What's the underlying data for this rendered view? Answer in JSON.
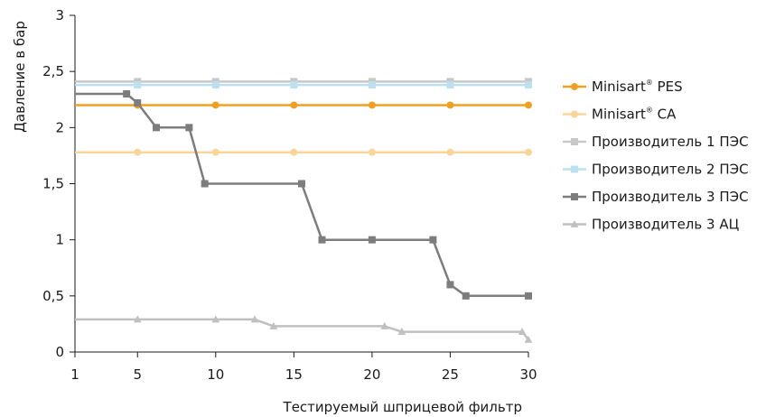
{
  "chart_data": {
    "type": "line",
    "xlabel": "Тестируемый шприцевой фильтр",
    "ylabel": "Давление в бар",
    "xlim": [
      1,
      30
    ],
    "ylim": [
      0,
      3
    ],
    "x_ticks": [
      1,
      5,
      10,
      15,
      20,
      25,
      30
    ],
    "x_tick_labels": [
      "1",
      "5",
      "10",
      "15",
      "20",
      "25",
      "30"
    ],
    "y_ticks": [
      0,
      0.5,
      1,
      1.5,
      2,
      2.5,
      3
    ],
    "y_tick_labels": [
      "0",
      "0,5",
      "1",
      "1,5",
      "2",
      "2,5",
      "3"
    ],
    "grid": false,
    "legend_position": "right",
    "series": [
      {
        "name": "Minisart",
        "name_sup": "®",
        "name_suffix": " PES",
        "label": "Minisart® PES",
        "color": "#f0a020",
        "marker": "circle",
        "x": [
          1,
          5,
          10,
          15,
          20,
          25,
          30
        ],
        "y": [
          2.2,
          2.2,
          2.2,
          2.2,
          2.2,
          2.2,
          2.2
        ],
        "marker_x": [
          5,
          10,
          15,
          20,
          25,
          30
        ]
      },
      {
        "name": "Minisart",
        "name_sup": "®",
        "name_suffix": " CA",
        "label": "Minisart® CA",
        "color": "#fad59a",
        "marker": "circle",
        "x": [
          1,
          5,
          10,
          15,
          20,
          25,
          30
        ],
        "y": [
          1.78,
          1.78,
          1.78,
          1.78,
          1.78,
          1.78,
          1.78
        ],
        "marker_x": [
          5,
          10,
          15,
          20,
          25,
          30
        ]
      },
      {
        "name": "Производитель 1 ПЭС",
        "name_sup": "",
        "name_suffix": "",
        "label": "Производитель 1 ПЭС",
        "color": "#c8c8c8",
        "marker": "square",
        "x": [
          1,
          5,
          10,
          15,
          20,
          25,
          30
        ],
        "y": [
          2.41,
          2.41,
          2.41,
          2.41,
          2.41,
          2.41,
          2.41
        ],
        "marker_x": [
          5,
          10,
          15,
          20,
          25,
          30
        ]
      },
      {
        "name": "Производитель 2 ПЭС",
        "name_sup": "",
        "name_suffix": "",
        "label": "Производитель 2 ПЭС",
        "color": "#bde0f0",
        "marker": "square",
        "x": [
          1,
          5,
          10,
          15,
          20,
          25,
          30
        ],
        "y": [
          2.38,
          2.38,
          2.38,
          2.38,
          2.38,
          2.38,
          2.38
        ],
        "marker_x": [
          5,
          10,
          15,
          20,
          25,
          30
        ]
      },
      {
        "name": "Производитель 3 ПЭС",
        "name_sup": "",
        "name_suffix": "",
        "label": "Производитель 3 ПЭС",
        "color": "#7d7d7d",
        "marker": "square",
        "x": [
          1,
          4.3,
          5,
          6.2,
          8.3,
          9.3,
          15.5,
          16.8,
          20,
          23.9,
          25,
          26,
          30
        ],
        "y": [
          2.3,
          2.3,
          2.22,
          2.0,
          2.0,
          1.5,
          1.5,
          1.0,
          1.0,
          1.0,
          0.6,
          0.5,
          0.5
        ],
        "marker_x": [
          4.3,
          5,
          6.2,
          8.3,
          9.3,
          15.5,
          16.8,
          20,
          23.9,
          25,
          26,
          30
        ]
      },
      {
        "name": "Производитель 3 АЦ",
        "name_sup": "",
        "name_suffix": "",
        "label": "Производитель 3 АЦ",
        "color": "#c0c0c0",
        "marker": "triangle",
        "x": [
          1,
          5,
          10,
          12.5,
          13.7,
          20.8,
          21.9,
          29.6,
          30
        ],
        "y": [
          0.29,
          0.29,
          0.29,
          0.29,
          0.23,
          0.23,
          0.18,
          0.18,
          0.11
        ],
        "marker_x": [
          5,
          10,
          12.5,
          13.7,
          20.8,
          21.9,
          29.6,
          30
        ]
      }
    ]
  }
}
